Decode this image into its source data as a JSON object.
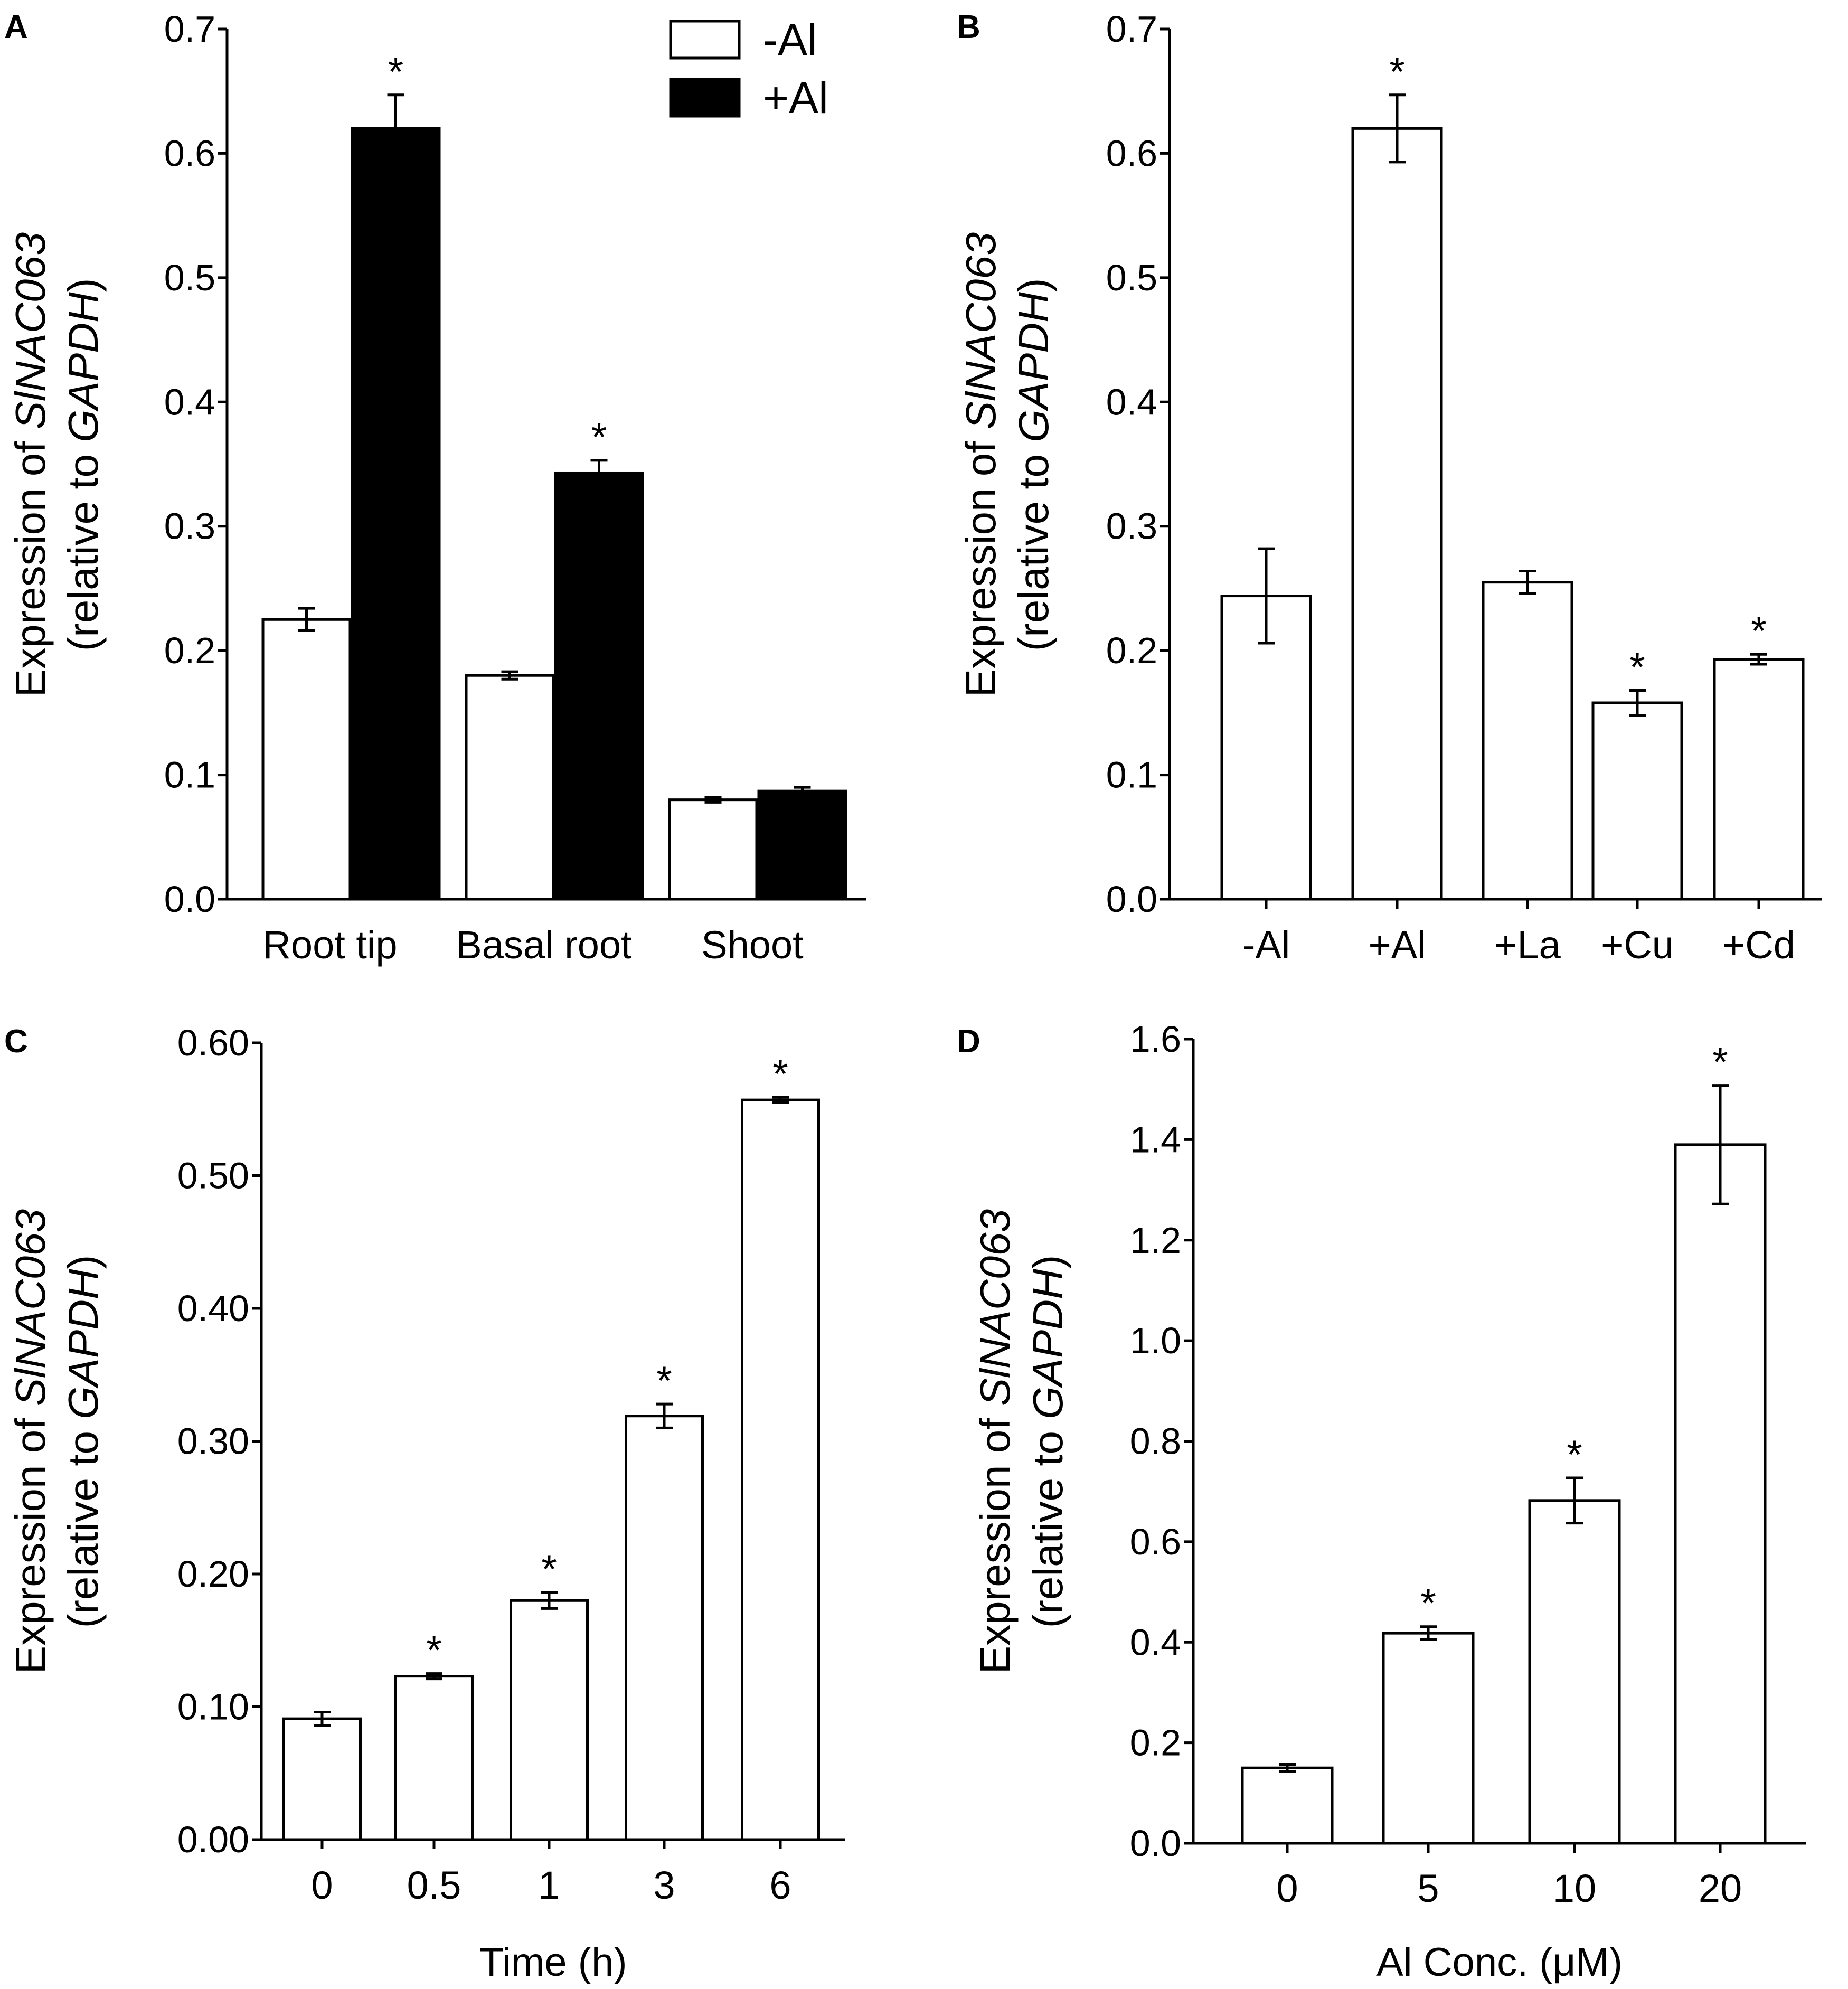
{
  "colors": {
    "open_bar": "#ffffff",
    "filled_bar": "#000000",
    "axis": "#000000"
  },
  "chart_data": [
    {
      "panel": "A",
      "type": "bar",
      "categories": [
        "Root tip",
        "Basal root",
        "Shoot"
      ],
      "series": [
        {
          "name": "-Al",
          "values": [
            0.225,
            0.18,
            0.08
          ],
          "errors": [
            0.009,
            0.003,
            0.002
          ],
          "sig": [
            "",
            "",
            ""
          ]
        },
        {
          "name": "+Al",
          "values": [
            0.62,
            0.343,
            0.087
          ],
          "errors": [
            0.027,
            0.01,
            0.003
          ],
          "sig": [
            "*",
            "*",
            ""
          ]
        }
      ],
      "ylim": [
        0,
        0.7
      ],
      "yticks": [
        "0.0",
        "0.1",
        "0.2",
        "0.3",
        "0.4",
        "0.5",
        "0.6",
        "0.7"
      ],
      "ylabel_prefix": "Expression of ",
      "ylabel_gene": "SlNAC063",
      "ylabel2_prefix": "(relative to ",
      "ylabel2_ref": "GAPDH",
      "ylabel2_suffix": ")",
      "xlabel": "",
      "legend": [
        "-Al",
        "+Al"
      ]
    },
    {
      "panel": "B",
      "type": "bar",
      "categories": [
        "-Al",
        "+Al",
        "+La",
        "+Cu",
        "+Cd"
      ],
      "series": [
        {
          "name": "expression",
          "values": [
            0.244,
            0.62,
            0.255,
            0.158,
            0.193
          ],
          "errors": [
            0.038,
            0.027,
            0.009,
            0.01,
            0.004
          ],
          "sig": [
            "",
            "*",
            "",
            "*",
            "*"
          ]
        }
      ],
      "ylim": [
        0,
        0.7
      ],
      "yticks": [
        "0.0",
        "0.1",
        "0.2",
        "0.3",
        "0.4",
        "0.5",
        "0.6",
        "0.7"
      ],
      "ylabel_prefix": "Expression of ",
      "ylabel_gene": "SlNAC063",
      "ylabel2_prefix": "(relative to ",
      "ylabel2_ref": "GAPDH",
      "ylabel2_suffix": ")",
      "xlabel": ""
    },
    {
      "panel": "C",
      "type": "bar",
      "categories": [
        "0",
        "0.5",
        "1",
        "3",
        "6"
      ],
      "series": [
        {
          "name": "expression",
          "values": [
            0.091,
            0.123,
            0.18,
            0.319,
            0.557
          ],
          "errors": [
            0.005,
            0.002,
            0.006,
            0.009,
            0.002
          ],
          "sig": [
            "",
            "*",
            "*",
            "*",
            "*"
          ]
        }
      ],
      "ylim": [
        0,
        0.6
      ],
      "yticks": [
        "0.00",
        "0.10",
        "0.20",
        "0.30",
        "0.40",
        "0.50",
        "0.60"
      ],
      "ylabel_prefix": "Expression of ",
      "ylabel_gene": "SlNAC063",
      "ylabel2_prefix": "(relative to ",
      "ylabel2_ref": "GAPDH",
      "ylabel2_suffix": ")",
      "xlabel": "Time (h)"
    },
    {
      "panel": "D",
      "type": "bar",
      "categories": [
        "0",
        "5",
        "10",
        "20"
      ],
      "series": [
        {
          "name": "expression",
          "values": [
            0.15,
            0.418,
            0.682,
            1.39
          ],
          "errors": [
            0.007,
            0.013,
            0.045,
            0.118
          ],
          "sig": [
            "",
            "*",
            "*",
            "*"
          ]
        }
      ],
      "ylim": [
        0,
        1.6
      ],
      "yticks": [
        "0.0",
        "0.2",
        "0.4",
        "0.6",
        "0.8",
        "1.0",
        "1.2",
        "1.4",
        "1.6"
      ],
      "ylabel_prefix": "Expression of ",
      "ylabel_gene": "SlNAC063",
      "ylabel2_prefix": "(relative to ",
      "ylabel2_ref": "GAPDH",
      "ylabel2_suffix": ")",
      "xlabel": "Al Conc. (μM)"
    }
  ]
}
